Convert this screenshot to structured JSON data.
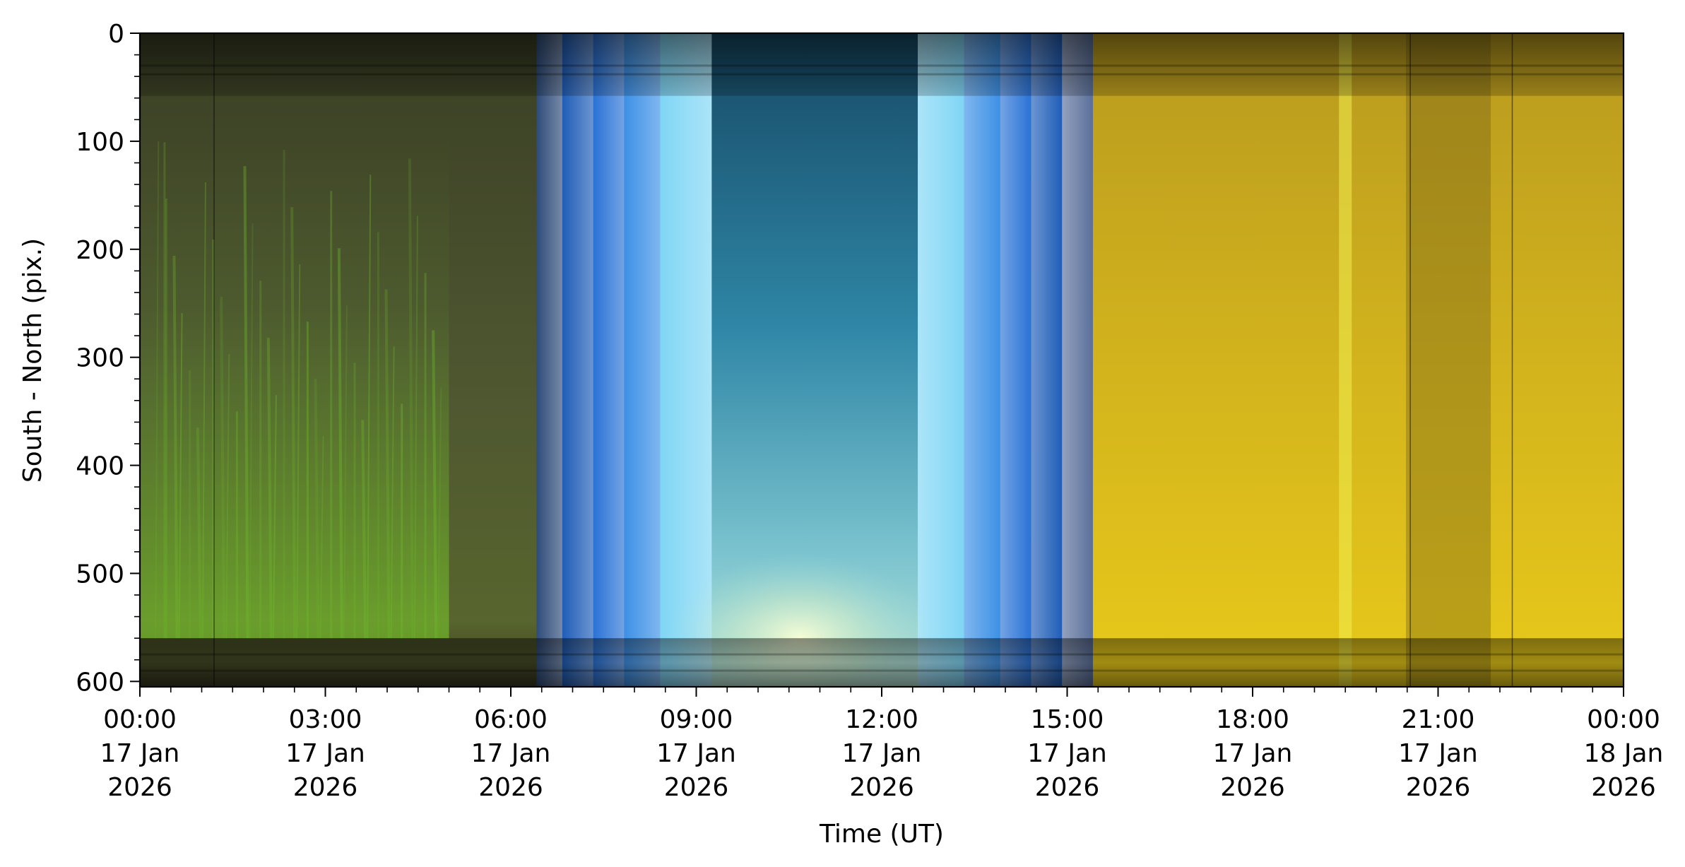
{
  "chart_data": {
    "type": "heatmap",
    "title": "",
    "xlabel": "Time (UT)",
    "ylabel": "South - North (pix.)",
    "x_range": [
      "2026-01-17T00:00",
      "2026-01-18T00:00"
    ],
    "y_range": [
      0,
      605
    ],
    "y_inverted": true,
    "y_ticks": [
      0,
      100,
      200,
      300,
      400,
      500,
      600
    ],
    "x_ticks": [
      {
        "time": "2026-01-17T00:00",
        "label": [
          "00:00",
          "17 Jan",
          "2026"
        ]
      },
      {
        "time": "2026-01-17T03:00",
        "label": [
          "03:00",
          "17 Jan",
          "2026"
        ]
      },
      {
        "time": "2026-01-17T06:00",
        "label": [
          "06:00",
          "17 Jan",
          "2026"
        ]
      },
      {
        "time": "2026-01-17T09:00",
        "label": [
          "09:00",
          "17 Jan",
          "2026"
        ]
      },
      {
        "time": "2026-01-17T12:00",
        "label": [
          "12:00",
          "17 Jan",
          "2026"
        ]
      },
      {
        "time": "2026-01-17T15:00",
        "label": [
          "15:00",
          "17 Jan",
          "2026"
        ]
      },
      {
        "time": "2026-01-17T18:00",
        "label": [
          "18:00",
          "17 Jan",
          "2026"
        ]
      },
      {
        "time": "2026-01-17T21:00",
        "label": [
          "21:00",
          "17 Jan",
          "2026"
        ]
      },
      {
        "time": "2026-01-18T00:00",
        "label": [
          "00:00",
          "18 Jan",
          "2026"
        ]
      }
    ],
    "segments": [
      {
        "start": "00:00",
        "end": "06:25",
        "color": "#4a5230",
        "shade": "green"
      },
      {
        "start": "06:25",
        "end": "06:50",
        "color": "#2f4c7a",
        "shade": "blue"
      },
      {
        "start": "06:50",
        "end": "07:20",
        "color": "#1f5db8",
        "shade": "blue"
      },
      {
        "start": "07:20",
        "end": "07:50",
        "color": "#2a72d6",
        "shade": "blue"
      },
      {
        "start": "07:50",
        "end": "08:25",
        "color": "#3c90e6",
        "shade": "blue"
      },
      {
        "start": "08:25",
        "end": "09:15",
        "color": "#7fd6f5",
        "shade": "blue"
      },
      {
        "start": "09:15",
        "end": "12:35",
        "color": "#2e7d98",
        "shade": "teal"
      },
      {
        "start": "12:35",
        "end": "13:20",
        "color": "#7fd6f5",
        "shade": "blue"
      },
      {
        "start": "13:20",
        "end": "13:55",
        "color": "#3c90e6",
        "shade": "blue"
      },
      {
        "start": "13:55",
        "end": "14:25",
        "color": "#2a72d6",
        "shade": "blue"
      },
      {
        "start": "14:25",
        "end": "14:55",
        "color": "#1f5db8",
        "shade": "blue"
      },
      {
        "start": "14:55",
        "end": "15:25",
        "color": "#5a6f9a",
        "shade": "blue"
      },
      {
        "start": "15:25",
        "end": "24:00",
        "color": "#d4b21c",
        "shade": "yellow"
      }
    ],
    "features": [
      {
        "type": "aurora",
        "start": "00:00",
        "end": "05:00",
        "color": "#6fbf2a"
      },
      {
        "type": "glow",
        "center": "10:40",
        "y": 560,
        "color": "#f4ffd0"
      },
      {
        "type": "bright_stripe",
        "center": "19:30",
        "color": "#f0ee50"
      },
      {
        "type": "dark_stripe",
        "center": "21:10",
        "color": "#6b5a18"
      }
    ],
    "horizon_band": {
      "y": [
        560,
        605
      ]
    },
    "top_band": {
      "y": [
        0,
        58
      ]
    },
    "grid": false,
    "legend": "none"
  }
}
